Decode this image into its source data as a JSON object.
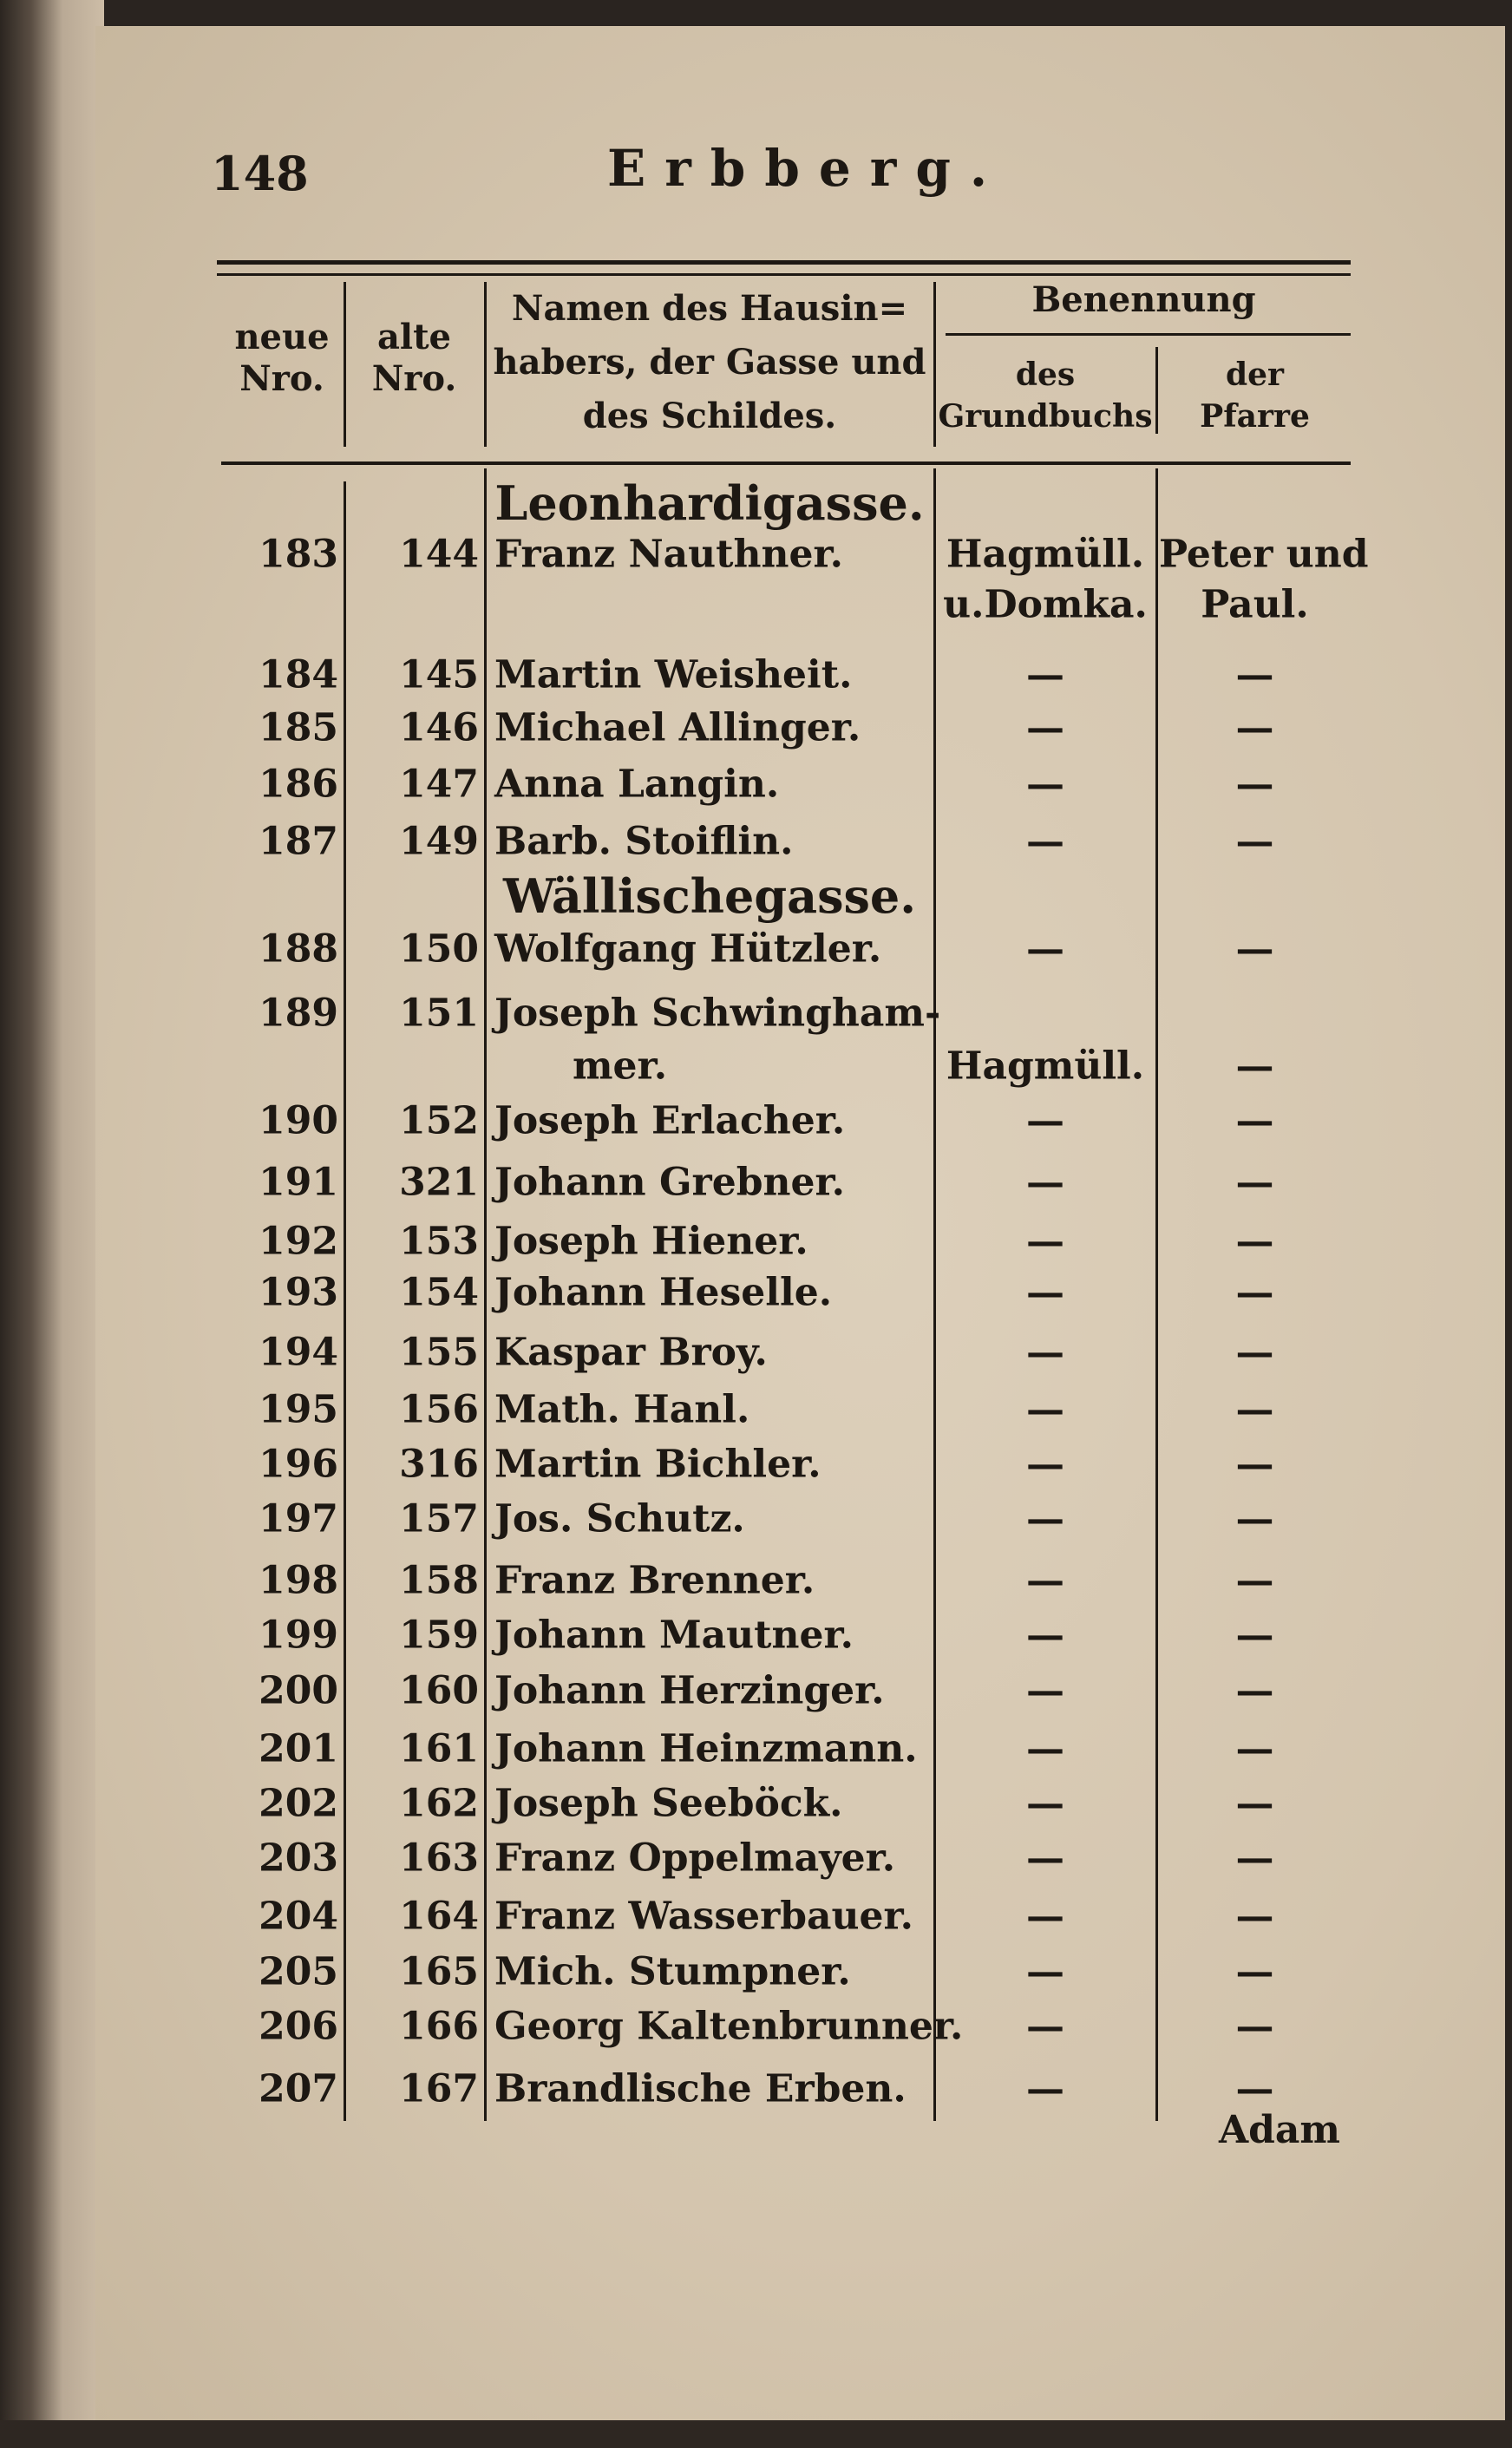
{
  "page_number": "148",
  "running_title": "Erbberg.",
  "headers": {
    "neue_nro": [
      "neue",
      "Nro."
    ],
    "alte_nro": [
      "alte",
      "Nro."
    ],
    "namen": [
      "Namen des Hausin=",
      "habers, der Gasse und",
      "des Schildes."
    ],
    "benennung": "Benennung",
    "grundbuch": [
      "des",
      "Grundbuchs"
    ],
    "pfarre": [
      "der",
      "Pfarre"
    ]
  },
  "rows": [
    {
      "type": "street",
      "name": "Leonhardigasse."
    },
    {
      "neue": "183",
      "alte": "144",
      "name": "Franz Nauthner.",
      "grundbuch": "Hagmüll.",
      "grundbuch2": "u.Domka.",
      "pfarre": "Peter und",
      "pfarre2": "Paul."
    },
    {
      "neue": "184",
      "alte": "145",
      "name": "Martin Weisheit.",
      "grundbuch": "—",
      "pfarre": "—"
    },
    {
      "neue": "185",
      "alte": "146",
      "name": "Michael Allinger.",
      "grundbuch": "—",
      "pfarre": "—"
    },
    {
      "neue": "186",
      "alte": "147",
      "name": "Anna Langin.",
      "grundbuch": "—",
      "pfarre": "—"
    },
    {
      "neue": "187",
      "alte": "149",
      "name": "Barb. Stoiflin.",
      "grundbuch": "—",
      "pfarre": "—"
    },
    {
      "type": "street",
      "name": "Wällischegasse."
    },
    {
      "neue": "188",
      "alte": "150",
      "name": "Wolfgang Hützler.",
      "grundbuch": "—",
      "pfarre": "—"
    },
    {
      "neue": "189",
      "alte": "151",
      "name": "Joseph Schwingham-",
      "name2": "mer.",
      "grundbuch": "Hagmüll.",
      "pfarre": "—"
    },
    {
      "neue": "190",
      "alte": "152",
      "name": "Joseph Erlacher.",
      "grundbuch": "—",
      "pfarre": "—"
    },
    {
      "neue": "191",
      "alte": "321",
      "name": "Johann Grebner.",
      "grundbuch": "—",
      "pfarre": "—"
    },
    {
      "neue": "192",
      "alte": "153",
      "name": "Joseph Hiener.",
      "grundbuch": "—",
      "pfarre": "—"
    },
    {
      "neue": "193",
      "alte": "154",
      "name": "Johann Heselle.",
      "grundbuch": "—",
      "pfarre": "—"
    },
    {
      "neue": "194",
      "alte": "155",
      "name": "Kaspar Broy.",
      "grundbuch": "—",
      "pfarre": "—"
    },
    {
      "neue": "195",
      "alte": "156",
      "name": "Math. Hanl.",
      "grundbuch": "—",
      "pfarre": "—"
    },
    {
      "neue": "196",
      "alte": "316",
      "name": "Martin Bichler.",
      "grundbuch": "—",
      "pfarre": "—"
    },
    {
      "neue": "197",
      "alte": "157",
      "name": "Jos. Schutz.",
      "grundbuch": "—",
      "pfarre": "—"
    },
    {
      "neue": "198",
      "alte": "158",
      "name": "Franz Brenner.",
      "grundbuch": "—",
      "pfarre": "—"
    },
    {
      "neue": "199",
      "alte": "159",
      "name": "Johann Mautner.",
      "grundbuch": "—",
      "pfarre": "—"
    },
    {
      "neue": "200",
      "alte": "160",
      "name": "Johann Herzinger.",
      "grundbuch": "—",
      "pfarre": "—"
    },
    {
      "neue": "201",
      "alte": "161",
      "name": "Johann Heinzmann.",
      "grundbuch": "—",
      "pfarre": "—"
    },
    {
      "neue": "202",
      "alte": "162",
      "name": "Joseph Seeböck.",
      "grundbuch": "—",
      "pfarre": "—"
    },
    {
      "neue": "203",
      "alte": "163",
      "name": "Franz Oppelmayer.",
      "grundbuch": "—",
      "pfarre": "—"
    },
    {
      "neue": "204",
      "alte": "164",
      "name": "Franz Wasserbauer.",
      "grundbuch": "—",
      "pfarre": "—"
    },
    {
      "neue": "205",
      "alte": "165",
      "name": "Mich. Stumpner.",
      "grundbuch": "—",
      "pfarre": "—"
    },
    {
      "neue": "206",
      "alte": "166",
      "name": "Georg Kaltenbrunner.",
      "grundbuch": "—",
      "pfarre": "—"
    },
    {
      "neue": "207",
      "alte": "167",
      "name": "Brandlische Erben.",
      "grundbuch": "—",
      "pfarre": "—"
    }
  ],
  "catchword": "Adam"
}
